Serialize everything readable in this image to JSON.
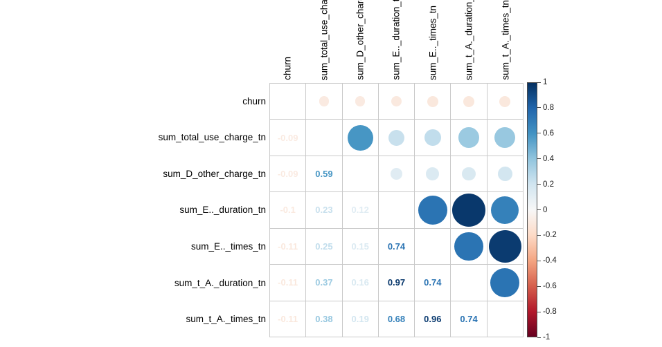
{
  "chart_data": {
    "type": "correlation-matrix",
    "title": "",
    "variables": [
      "churn",
      "sum_total_use_charge_tn",
      "sum_D_other_charge_tn",
      "sum_E.._duration_tn",
      "sum_E.._times_tn",
      "sum_t_A._duration_tn",
      "sum_t_A._times_tn"
    ],
    "display": {
      "upper_triangle": "circles sized and colored by correlation",
      "lower_triangle": "numeric labels colored by correlation",
      "diagonal": "blank"
    },
    "pairs": [
      {
        "row": 1,
        "col": 0,
        "value": -0.09,
        "label": "-0.09"
      },
      {
        "row": 2,
        "col": 0,
        "value": -0.09,
        "label": "-0.09"
      },
      {
        "row": 2,
        "col": 1,
        "value": 0.59,
        "label": "0.59"
      },
      {
        "row": 3,
        "col": 0,
        "value": -0.1,
        "label": "-0.1"
      },
      {
        "row": 3,
        "col": 1,
        "value": 0.23,
        "label": "0.23"
      },
      {
        "row": 3,
        "col": 2,
        "value": 0.12,
        "label": "0.12"
      },
      {
        "row": 4,
        "col": 0,
        "value": -0.11,
        "label": "-0.11"
      },
      {
        "row": 4,
        "col": 1,
        "value": 0.25,
        "label": "0.25"
      },
      {
        "row": 4,
        "col": 2,
        "value": 0.15,
        "label": "0.15"
      },
      {
        "row": 4,
        "col": 3,
        "value": 0.74,
        "label": "0.74"
      },
      {
        "row": 5,
        "col": 0,
        "value": -0.11,
        "label": "-0.11"
      },
      {
        "row": 5,
        "col": 1,
        "value": 0.37,
        "label": "0.37"
      },
      {
        "row": 5,
        "col": 2,
        "value": 0.16,
        "label": "0.16"
      },
      {
        "row": 5,
        "col": 3,
        "value": 0.97,
        "label": "0.97"
      },
      {
        "row": 5,
        "col": 4,
        "value": 0.74,
        "label": "0.74"
      },
      {
        "row": 6,
        "col": 0,
        "value": -0.11,
        "label": "-0.11"
      },
      {
        "row": 6,
        "col": 1,
        "value": 0.38,
        "label": "0.38"
      },
      {
        "row": 6,
        "col": 2,
        "value": 0.19,
        "label": "0.19"
      },
      {
        "row": 6,
        "col": 3,
        "value": 0.68,
        "label": "0.68"
      },
      {
        "row": 6,
        "col": 4,
        "value": 0.96,
        "label": "0.96"
      },
      {
        "row": 6,
        "col": 5,
        "value": 0.74,
        "label": "0.74"
      }
    ],
    "colorbar": {
      "ticks": [
        "1",
        "0.8",
        "0.6",
        "0.4",
        "0.2",
        "0",
        "-0.2",
        "-0.4",
        "-0.6",
        "-0.8",
        "-1"
      ],
      "range": [
        1,
        -1
      ],
      "palette_stops": [
        {
          "value": 1.0,
          "color": "#053061"
        },
        {
          "value": 0.8,
          "color": "#2166AC"
        },
        {
          "value": 0.6,
          "color": "#4393C3"
        },
        {
          "value": 0.4,
          "color": "#92C5DE"
        },
        {
          "value": 0.2,
          "color": "#D1E5F0"
        },
        {
          "value": 0.0,
          "color": "#F7F7F7"
        },
        {
          "value": -0.2,
          "color": "#FDDBC7"
        },
        {
          "value": -0.4,
          "color": "#F4A582"
        },
        {
          "value": -0.6,
          "color": "#D6604D"
        },
        {
          "value": -0.8,
          "color": "#B2182B"
        },
        {
          "value": -1.0,
          "color": "#67001F"
        }
      ]
    },
    "grid_line_color": "#c9c9c9",
    "background_color": "#ffffff"
  }
}
